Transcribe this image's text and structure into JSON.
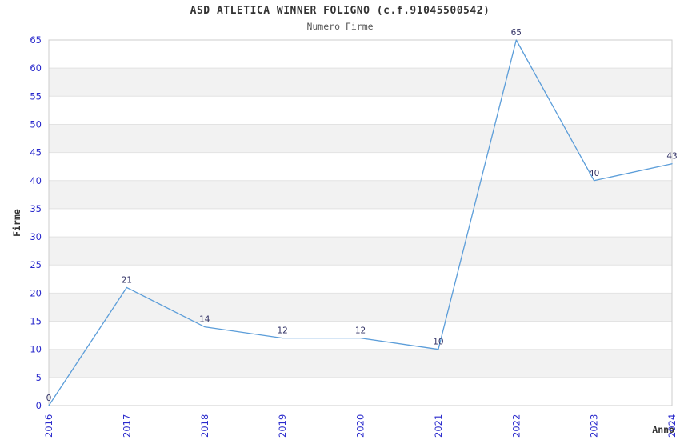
{
  "header": {
    "title": "ASD ATLETICA WINNER FOLIGNO (c.f.91045500542)",
    "subtitle": "Numero Firme"
  },
  "chart_data": {
    "type": "line",
    "title": "ASD ATLETICA WINNER FOLIGNO (c.f.91045500542)",
    "subtitle": "Numero Firme",
    "xlabel": "Anno",
    "ylabel": "Firme",
    "categories": [
      "2016",
      "2017",
      "2018",
      "2019",
      "2020",
      "2021",
      "2022",
      "2023",
      "2024"
    ],
    "series": [
      {
        "name": "Firme",
        "values": [
          0,
          21,
          14,
          12,
          12,
          10,
          65,
          40,
          43
        ]
      }
    ],
    "point_labels": [
      "0",
      "21",
      "14",
      "12",
      "12",
      "10",
      "65",
      "40",
      "43"
    ],
    "ylim": [
      0,
      65
    ],
    "ytick_step": 5,
    "yticks": [
      0,
      5,
      10,
      15,
      20,
      25,
      30,
      35,
      40,
      45,
      50,
      55,
      60,
      65
    ],
    "grid": "horizontal-bands-alternating",
    "legend": "none",
    "colors": {
      "line": "#5b9dd9",
      "tick_label": "#2929cc",
      "point_label": "#333366",
      "band_gray": "#f2f2f2",
      "band_white": "#ffffff",
      "gridline": "#e3e3e3",
      "border": "#cccccc",
      "title": "#333333",
      "subtitle": "#595959",
      "axis_label": "#333333",
      "background": "#ffffff"
    }
  }
}
